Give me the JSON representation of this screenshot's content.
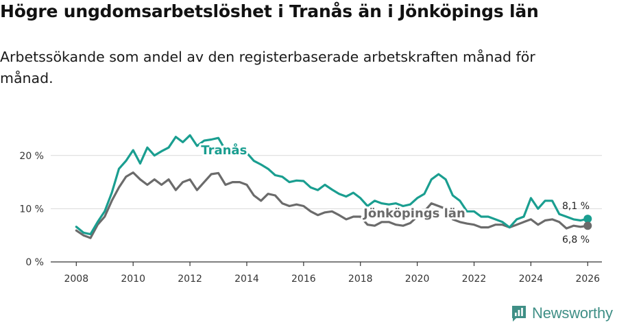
{
  "header": {
    "title": "Högre ungdomsarbetslöshet i Tranås än i Jönköpings län",
    "subtitle": "Arbetssökande som andel av den registerbaserade arbetskraften månad för månad."
  },
  "brand": {
    "name": "Newsworthy",
    "icon": "newsworthy-logo-icon",
    "color": "#3f8f86"
  },
  "colors": {
    "tranas": "#1a9e90",
    "jonkoping": "#6b6b6b",
    "grid": "#d9d9d9",
    "axis": "#333333"
  },
  "chart_data": {
    "type": "line",
    "title": "Högre ungdomsarbetslöshet i Tranås än i Jönköpings län",
    "subtitle": "Arbetssökande som andel av den registerbaserade arbetskraften månad för månad.",
    "xlabel": "",
    "ylabel": "",
    "xlim": [
      2007.1,
      2026.5
    ],
    "ylim": [
      0,
      25
    ],
    "x_ticks": [
      2008,
      2010,
      2012,
      2014,
      2016,
      2018,
      2020,
      2022,
      2024,
      2026
    ],
    "x_tick_labels": [
      "2008",
      "2010",
      "2012",
      "2014",
      "2016",
      "2018",
      "2020",
      "2022",
      "2024",
      "2026"
    ],
    "y_ticks": [
      0,
      10,
      20
    ],
    "y_tick_labels": [
      "0 %",
      "10 %",
      "20 %"
    ],
    "grid": true,
    "series": [
      {
        "name": "Tranås",
        "color": "#1a9e90",
        "end_label": "8,1 %",
        "x": [
          2008.0,
          2008.25,
          2008.5,
          2008.75,
          2009.0,
          2009.25,
          2009.5,
          2009.75,
          2010.0,
          2010.25,
          2010.5,
          2010.75,
          2011.0,
          2011.25,
          2011.5,
          2011.75,
          2012.0,
          2012.25,
          2012.5,
          2012.75,
          2013.0,
          2013.25,
          2013.5,
          2013.75,
          2014.0,
          2014.25,
          2014.5,
          2014.75,
          2015.0,
          2015.25,
          2015.5,
          2015.75,
          2016.0,
          2016.25,
          2016.5,
          2016.75,
          2017.0,
          2017.25,
          2017.5,
          2017.75,
          2018.0,
          2018.25,
          2018.5,
          2018.75,
          2019.0,
          2019.25,
          2019.5,
          2019.75,
          2020.0,
          2020.25,
          2020.5,
          2020.75,
          2021.0,
          2021.25,
          2021.5,
          2021.75,
          2022.0,
          2022.25,
          2022.5,
          2022.75,
          2023.0,
          2023.25,
          2023.5,
          2023.75,
          2024.0,
          2024.25,
          2024.5,
          2024.75,
          2025.0,
          2025.25,
          2025.5,
          2025.75,
          2026.0
        ],
        "values": [
          6.6,
          5.5,
          5.2,
          7.5,
          9.5,
          13.0,
          17.5,
          19.0,
          21.0,
          18.5,
          21.5,
          20.0,
          20.8,
          21.5,
          23.5,
          22.5,
          23.8,
          21.8,
          22.8,
          23.0,
          23.3,
          21.0,
          21.5,
          21.0,
          20.5,
          19.0,
          18.3,
          17.5,
          16.3,
          16.0,
          15.0,
          15.3,
          15.2,
          14.0,
          13.5,
          14.5,
          13.6,
          12.8,
          12.3,
          13.0,
          12.0,
          10.5,
          11.5,
          11.0,
          10.8,
          11.0,
          10.5,
          10.8,
          12.0,
          12.8,
          15.5,
          16.5,
          15.5,
          12.5,
          11.5,
          9.5,
          9.5,
          8.5,
          8.5,
          8.0,
          7.5,
          6.5,
          8.0,
          8.5,
          12.0,
          10.0,
          11.5,
          11.5,
          9.0,
          8.5,
          8.0,
          7.8,
          8.1
        ]
      },
      {
        "name": "Jönköpings län",
        "color": "#6b6b6b",
        "end_label": "6,8 %",
        "x": [
          2008.0,
          2008.25,
          2008.5,
          2008.75,
          2009.0,
          2009.25,
          2009.5,
          2009.75,
          2010.0,
          2010.25,
          2010.5,
          2010.75,
          2011.0,
          2011.25,
          2011.5,
          2011.75,
          2012.0,
          2012.25,
          2012.5,
          2012.75,
          2013.0,
          2013.25,
          2013.5,
          2013.75,
          2014.0,
          2014.25,
          2014.5,
          2014.75,
          2015.0,
          2015.25,
          2015.5,
          2015.75,
          2016.0,
          2016.25,
          2016.5,
          2016.75,
          2017.0,
          2017.25,
          2017.5,
          2017.75,
          2018.0,
          2018.25,
          2018.5,
          2018.75,
          2019.0,
          2019.25,
          2019.5,
          2019.75,
          2020.0,
          2020.25,
          2020.5,
          2020.75,
          2021.0,
          2021.25,
          2021.5,
          2021.75,
          2022.0,
          2022.25,
          2022.5,
          2022.75,
          2023.0,
          2023.25,
          2023.5,
          2023.75,
          2024.0,
          2024.25,
          2024.5,
          2024.75,
          2025.0,
          2025.25,
          2025.5,
          2025.75,
          2026.0
        ],
        "values": [
          5.9,
          5.0,
          4.5,
          7.0,
          8.5,
          11.5,
          14.0,
          16.0,
          16.8,
          15.5,
          14.5,
          15.5,
          14.5,
          15.5,
          13.5,
          15.0,
          15.5,
          13.5,
          15.0,
          16.5,
          16.7,
          14.5,
          15.0,
          15.0,
          14.5,
          12.5,
          11.5,
          12.8,
          12.5,
          11.0,
          10.5,
          10.8,
          10.5,
          9.5,
          8.8,
          9.3,
          9.5,
          8.8,
          8.0,
          8.5,
          8.5,
          7.0,
          6.8,
          7.5,
          7.5,
          7.0,
          6.8,
          7.3,
          8.5,
          9.5,
          11.0,
          10.5,
          10.0,
          8.0,
          7.5,
          7.2,
          7.0,
          6.5,
          6.5,
          7.0,
          7.0,
          6.5,
          7.0,
          7.5,
          8.0,
          7.0,
          7.8,
          8.0,
          7.5,
          6.3,
          6.8,
          6.6,
          6.8
        ]
      }
    ]
  }
}
